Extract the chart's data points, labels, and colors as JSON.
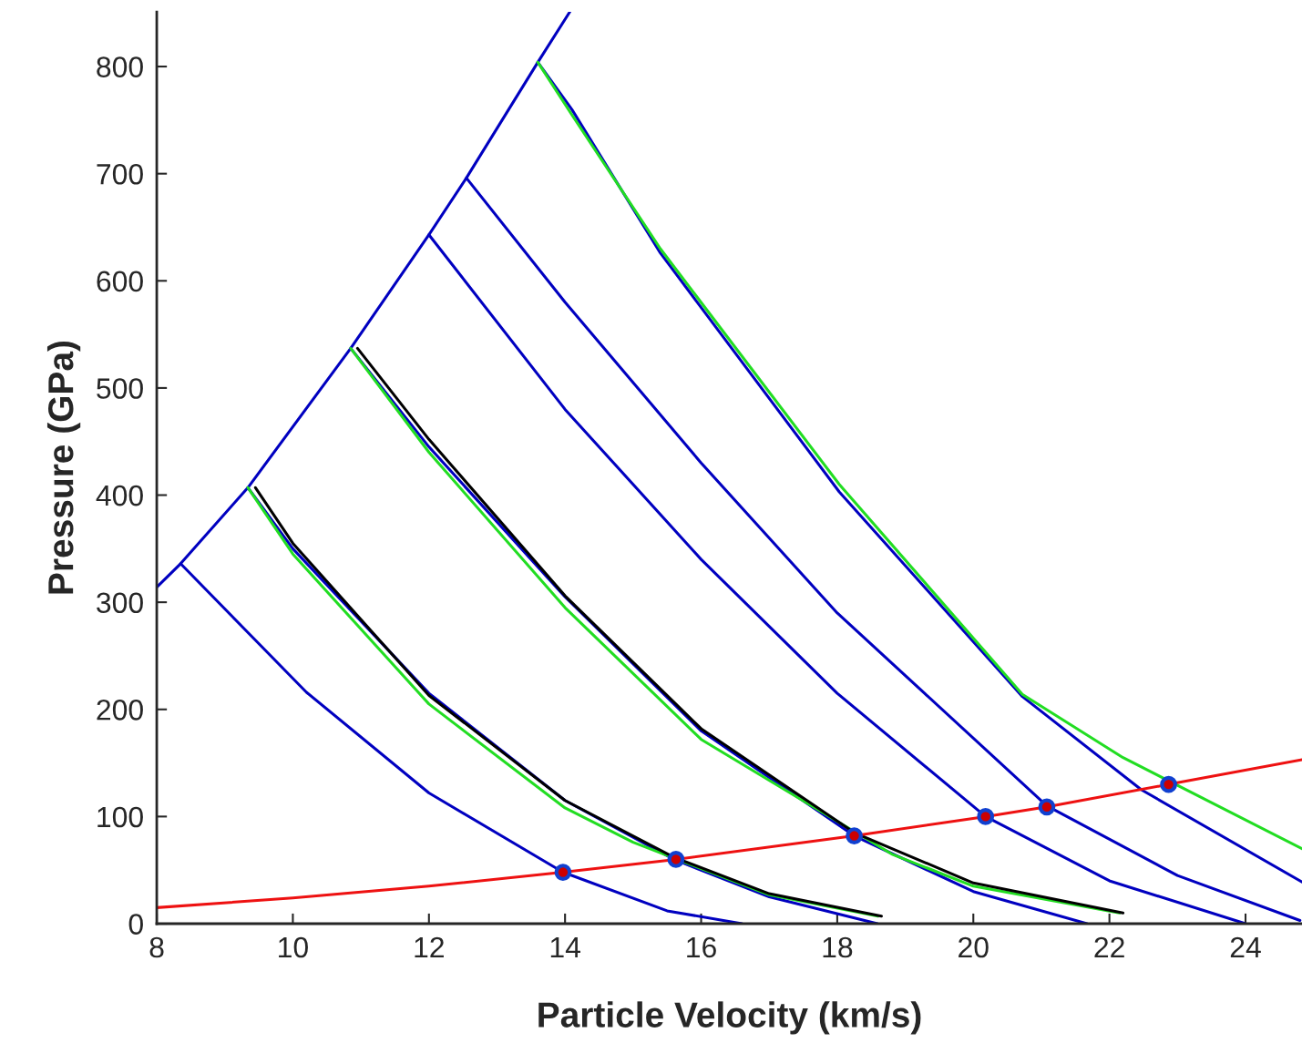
{
  "chart_data": {
    "type": "line",
    "xlabel": "Particle Velocity (km/s)",
    "ylabel": "Pressure (GPa)",
    "xlim": [
      8,
      24.83
    ],
    "ylim": [
      0,
      851
    ],
    "xticks": [
      8,
      10,
      12,
      14,
      16,
      18,
      20,
      22,
      24
    ],
    "yticks": [
      0,
      100,
      200,
      300,
      400,
      500,
      600,
      700,
      800
    ],
    "grid": false,
    "legend": false,
    "marker": "none",
    "line_style": "solid",
    "series": [
      {
        "color": "#0000c0",
        "x": [
          8,
          8.35,
          9.34,
          10.85,
          12.0,
          12.55,
          13.6,
          14.07
        ],
        "values": [
          314,
          336,
          407,
          537,
          643,
          696,
          804,
          851
        ]
      },
      {
        "color": "#0000c0",
        "x": [
          8.35,
          10.2,
          12,
          13.97,
          15.5,
          16.6
        ],
        "values": [
          336,
          216,
          122,
          48,
          12,
          0
        ]
      },
      {
        "color": "#0000c0",
        "x": [
          9.34,
          10,
          12,
          14,
          15.6,
          17,
          18.59
        ],
        "values": [
          407,
          350,
          215,
          115,
          60,
          25,
          0
        ]
      },
      {
        "color": "#0000c0",
        "x": [
          10.85,
          12,
          14,
          16,
          18.25,
          20,
          21.67
        ],
        "values": [
          537,
          445,
          305,
          180,
          82,
          30,
          0
        ]
      },
      {
        "color": "#0000c0",
        "x": [
          12.0,
          14,
          16,
          18,
          20.18,
          22,
          24
        ],
        "values": [
          643,
          480,
          340,
          215,
          100,
          40,
          0
        ]
      },
      {
        "color": "#0000c0",
        "x": [
          12.55,
          14,
          16,
          18,
          21.08,
          23,
          24.8
        ],
        "values": [
          696,
          580,
          430,
          290,
          110,
          45,
          3
        ]
      },
      {
        "color": "#0000c0",
        "x": [
          13.6,
          14.1,
          15.4,
          18.03,
          20.72,
          22.47,
          24.83
        ],
        "values": [
          804,
          760,
          626,
          403,
          212,
          125,
          39
        ]
      },
      {
        "color": "#22dd22",
        "x": [
          9.34,
          10,
          12,
          14,
          15.0,
          17,
          18.6
        ],
        "values": [
          407,
          345,
          205,
          108,
          76,
          27,
          7
        ]
      },
      {
        "color": "#22dd22",
        "x": [
          10.85,
          12,
          14,
          16,
          18.8,
          20,
          22.15
        ],
        "values": [
          537,
          440,
          295,
          172,
          65,
          35,
          10
        ]
      },
      {
        "color": "#22dd22",
        "x": [
          13.6,
          14.1,
          15.4,
          18.03,
          20.72,
          22.2,
          24.83
        ],
        "values": [
          804,
          755,
          630,
          410,
          214,
          155,
          70
        ]
      },
      {
        "color": "#000000",
        "x": [
          9.45,
          10,
          12,
          14,
          15.6,
          17,
          18.65
        ],
        "values": [
          407,
          355,
          213,
          115,
          62,
          28,
          7
        ]
      },
      {
        "color": "#000000",
        "x": [
          10.95,
          12,
          14,
          16,
          18.25,
          20,
          22.2
        ],
        "values": [
          537,
          452,
          306,
          182,
          85,
          38,
          10
        ]
      },
      {
        "color": "#ee1111",
        "x": [
          8,
          10,
          12,
          13.97,
          15.63,
          18.25,
          20.18,
          21.08,
          22.87,
          24.83
        ],
        "values": [
          15,
          24,
          35,
          48,
          60,
          82,
          100,
          109,
          130,
          153
        ]
      },
      {
        "type": "scatter",
        "marker": "circle",
        "color": "#cc0000",
        "x": [
          13.97,
          15.63,
          18.25,
          20.18,
          21.08,
          22.87
        ],
        "values": [
          48,
          60,
          82,
          100,
          109,
          130
        ]
      }
    ]
  }
}
